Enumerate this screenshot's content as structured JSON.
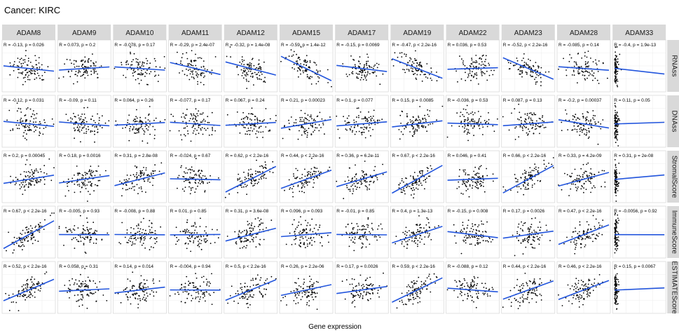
{
  "chart_data": {
    "type": "scatter",
    "title": "Cancer: KIRC",
    "xlabel": "Gene expression",
    "ylabel": "",
    "columns": [
      "ADAM8",
      "ADAM9",
      "ADAM10",
      "ADAM11",
      "ADAM12",
      "ADAM15",
      "ADAM17",
      "ADAM19",
      "ADAM22",
      "ADAM23",
      "ADAM28",
      "ADAM33"
    ],
    "rows": [
      "RNAss",
      "DNAss",
      "StromalScore",
      "ImmuneScore",
      "ESTIMATEScore"
    ],
    "grid": true,
    "line_color": "#2255dd",
    "point_color": "#000000",
    "strip_color": "#d9d9d9",
    "annotations": [
      [
        "R = -0.13, p = 0.026",
        "R = 0.073, p = 0.2",
        "R = -0.078, p = 0.17",
        "R = -0.29, p = 2.4e-07",
        "R = -0.32, p = 1.4e-08",
        "R = -0.59, p = 1.4e-12",
        "R = -0.15, p = 0.0069",
        "R = -0.47, p < 2.2e-16",
        "R = 0.036, p = 0.53",
        "R = -0.52, p < 2.2e-16",
        "R = -0.085, p = 0.14",
        "R = -0.4, p = 1.9e-13"
      ],
      [
        "R = -0.12, p = 0.031",
        "R = -0.09, p = 0.11",
        "R = 0.064, p = 0.26",
        "R = -0.077, p = 0.17",
        "R = 0.067, p = 0.24",
        "R = 0.21, p = 0.00023",
        "R = 0.1, p = 0.077",
        "R = 0.15, p = 0.0085",
        "R = -0.036, p = 0.53",
        "R = 0.087, p = 0.13",
        "R = -0.2, p = 0.00037",
        "R = 0.11, p = 0.05"
      ],
      [
        "R = 0.2, p = 0.00045",
        "R = 0.18, p = 0.0016",
        "R = 0.31, p = 2.8e-08",
        "R = -0.024, p = 0.67",
        "R = 0.62, p < 2.2e-16",
        "R = 0.44, p < 2.2e-16",
        "R = 0.36, p = 6.2e-11",
        "R = 0.67, p < 2.2e-16",
        "R = 0.046, p = 0.41",
        "R = 0.66, p < 2.2e-16",
        "R = 0.33, p = 4.2e-09",
        "R = 0.31, p = 2e-08"
      ],
      [
        "R = 0.67, p < 2.2e-16",
        "R = -0.005, p = 0.93",
        "R = -0.008, p = 0.88",
        "R = 0.01, p = 0.85",
        "R = 0.31, p = 3.6e-08",
        "R = 0.096, p = 0.093",
        "R = -0.01, p = 0.85",
        "R = 0.4, p = 1.3e-13",
        "R = -0.15, p = 0.008",
        "R = 0.17, p = 0.0026",
        "R = 0.47, p < 2.2e-16",
        "R = -0.0056, p = 0.92"
      ],
      [
        "R = 0.52, p < 2.2e-16",
        "R = 0.058, p = 0.31",
        "R = 0.14, p = 0.014",
        "R = -0.004, p = 0.94",
        "R = 0.5, p < 2.2e-16",
        "R = 0.26, p = 2.2e-06",
        "R = 0.17, p = 0.0026",
        "R = 0.59, p < 2.2e-16",
        "R = -0.088, p = 0.12",
        "R = 0.44, p < 2.2e-16",
        "R = 0.46, p < 2.2e-16",
        "R = 0.15, p = 0.0067"
      ]
    ],
    "r_values": [
      [
        -0.13,
        0.073,
        -0.078,
        -0.29,
        -0.32,
        -0.59,
        -0.15,
        -0.47,
        0.036,
        -0.52,
        -0.085,
        -0.4
      ],
      [
        -0.12,
        -0.09,
        0.064,
        -0.077,
        0.067,
        0.21,
        0.1,
        0.15,
        -0.036,
        0.087,
        -0.2,
        0.11
      ],
      [
        0.2,
        0.18,
        0.31,
        -0.024,
        0.62,
        0.44,
        0.36,
        0.67,
        0.046,
        0.66,
        0.33,
        0.31
      ],
      [
        0.67,
        -0.005,
        -0.008,
        0.01,
        0.31,
        0.096,
        -0.01,
        0.4,
        -0.15,
        0.17,
        0.47,
        -0.0056
      ],
      [
        0.52,
        0.058,
        0.14,
        -0.004,
        0.5,
        0.26,
        0.17,
        0.59,
        -0.088,
        0.44,
        0.46,
        0.15
      ]
    ]
  }
}
